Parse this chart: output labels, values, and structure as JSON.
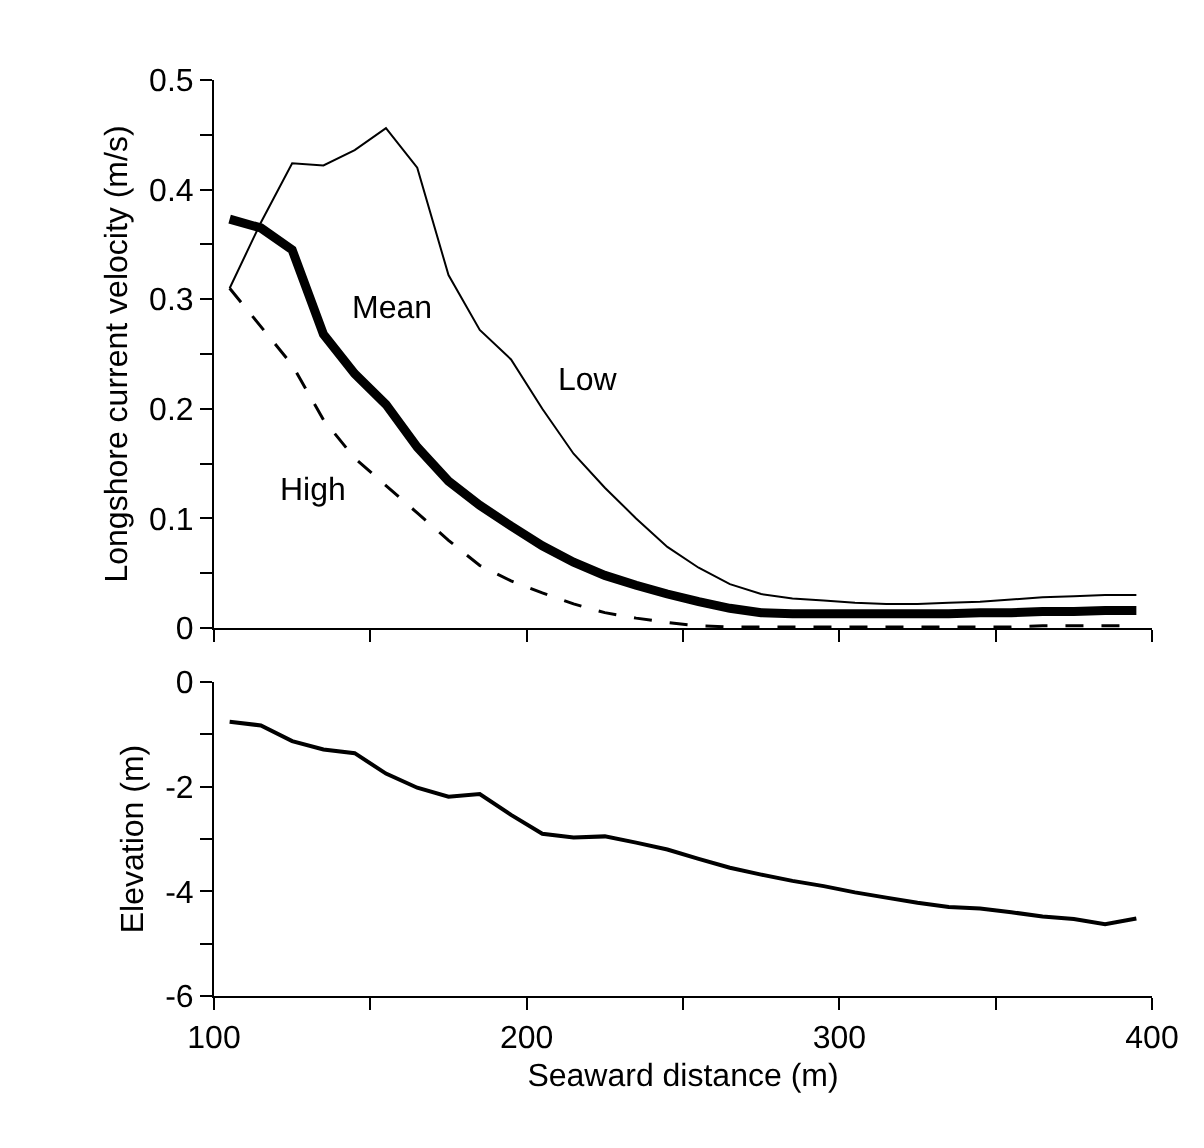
{
  "chart_data": [
    {
      "type": "line",
      "ylabel": "Longshore current velocity (m/s)",
      "x": [
        105,
        115,
        125,
        135,
        145,
        155,
        165,
        175,
        185,
        195,
        205,
        215,
        225,
        235,
        245,
        255,
        265,
        275,
        285,
        295,
        305,
        315,
        325,
        335,
        345,
        355,
        365,
        375,
        385,
        395
      ],
      "series": [
        {
          "name": "Low",
          "color": "#000000",
          "line_style": "solid",
          "values": [
            0.31,
            0.37,
            0.424,
            0.422,
            0.436,
            0.456,
            0.42,
            0.322,
            0.272,
            0.245,
            0.2,
            0.159,
            0.128,
            0.1,
            0.074,
            0.055,
            0.04,
            0.031,
            0.027,
            0.025,
            0.023,
            0.022,
            0.022,
            0.023,
            0.024,
            0.026,
            0.028,
            0.029,
            0.03,
            0.03
          ]
        },
        {
          "name": "Mean",
          "color": "#000000",
          "line_style": "solid",
          "values": [
            0.373,
            0.365,
            0.345,
            0.268,
            0.232,
            0.204,
            0.165,
            0.134,
            0.112,
            0.093,
            0.075,
            0.06,
            0.048,
            0.039,
            0.031,
            0.024,
            0.018,
            0.014,
            0.013,
            0.013,
            0.013,
            0.013,
            0.013,
            0.013,
            0.014,
            0.014,
            0.015,
            0.015,
            0.016,
            0.016
          ]
        },
        {
          "name": "High",
          "color": "#000000",
          "line_style": "dashed",
          "values": [
            0.31,
            0.275,
            0.24,
            0.19,
            0.155,
            0.13,
            0.105,
            0.08,
            0.057,
            0.043,
            0.032,
            0.022,
            0.014,
            0.009,
            0.005,
            0.002,
            0.001,
            0.001,
            0.001,
            0.001,
            0.001,
            0.001,
            0.001,
            0.001,
            0.001,
            0.001,
            0.002,
            0.002,
            0.002,
            0.002
          ]
        }
      ],
      "xlim": [
        100,
        400
      ],
      "ylim": [
        0,
        0.5
      ],
      "xticks": [
        {
          "value": 100,
          "label": null
        },
        {
          "value": 150,
          "label": null
        },
        {
          "value": 200,
          "label": null
        },
        {
          "value": 250,
          "label": null
        },
        {
          "value": 300,
          "label": null
        },
        {
          "value": 350,
          "label": null
        },
        {
          "value": 400,
          "label": null
        }
      ],
      "yticks": [
        0,
        {
          "value": 0.05,
          "label": null
        },
        0.1,
        {
          "value": 0.15,
          "label": null
        },
        0.2,
        {
          "value": 0.25,
          "label": null
        },
        0.3,
        {
          "value": 0.35,
          "label": null
        },
        0.4,
        {
          "value": 0.45,
          "label": null
        },
        0.5
      ],
      "tick_labels": "y"
    },
    {
      "type": "line",
      "xlabel": "Seaward distance (m)",
      "ylabel": "Elevation (m)",
      "x": [
        105,
        115,
        125,
        135,
        145,
        155,
        165,
        175,
        185,
        195,
        205,
        215,
        225,
        235,
        245,
        255,
        265,
        275,
        285,
        295,
        305,
        315,
        325,
        335,
        345,
        355,
        365,
        375,
        385,
        395
      ],
      "series": [
        {
          "color": "#000000",
          "line_style": "solid",
          "values": [
            -0.76,
            -0.83,
            -1.13,
            -1.29,
            -1.36,
            -1.75,
            -2.02,
            -2.19,
            -2.14,
            -2.54,
            -2.9,
            -2.97,
            -2.95,
            -3.07,
            -3.2,
            -3.38,
            -3.55,
            -3.68,
            -3.8,
            -3.9,
            -4.02,
            -4.12,
            -4.22,
            -4.3,
            -4.33,
            -4.4,
            -4.48,
            -4.53,
            -4.63,
            -4.52
          ]
        }
      ],
      "xlim": [
        100,
        400
      ],
      "ylim": [
        -6,
        0
      ],
      "xticks": [
        100,
        {
          "value": 150,
          "label": null
        },
        200,
        {
          "value": 250,
          "label": null
        },
        300,
        {
          "value": 350,
          "label": null
        },
        400
      ],
      "yticks": [
        -6,
        {
          "value": -5,
          "label": null
        },
        -4,
        {
          "value": -3,
          "label": null
        },
        -2,
        {
          "value": -1,
          "label": null
        },
        0
      ]
    }
  ]
}
